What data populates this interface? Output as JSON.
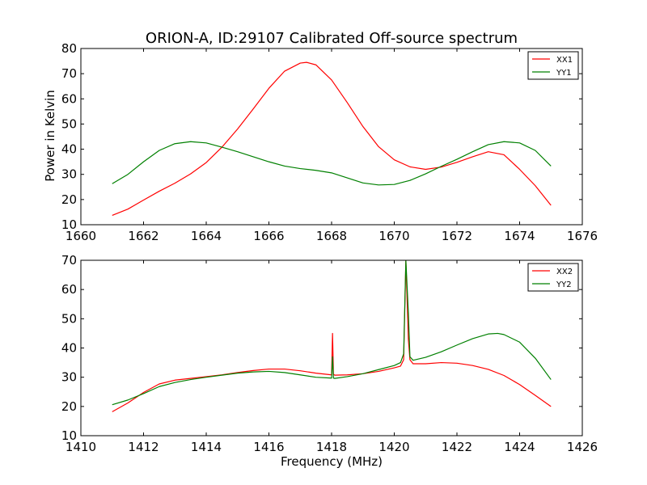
{
  "chart_data": [
    {
      "type": "line",
      "title": "ORION-A, ID:29107 Calibrated Off-source spectrum",
      "xlabel": "",
      "ylabel": "Power in Kelvin",
      "xlim": [
        1660,
        1676
      ],
      "ylim": [
        10,
        80
      ],
      "xticks": [
        "1660",
        "1662",
        "1664",
        "1666",
        "1668",
        "1670",
        "1672",
        "1674",
        "1676"
      ],
      "yticks": [
        "10",
        "20",
        "30",
        "40",
        "50",
        "60",
        "70",
        "80"
      ],
      "legend_position": "top-right",
      "grid": false,
      "series": [
        {
          "name": "XX1",
          "color": "#ff0000",
          "x": [
            1661.0,
            1661.5,
            1662.0,
            1662.5,
            1663.0,
            1663.5,
            1664.0,
            1664.5,
            1665.0,
            1665.5,
            1666.0,
            1666.5,
            1667.0,
            1667.2,
            1667.5,
            1668.0,
            1668.5,
            1669.0,
            1669.5,
            1670.0,
            1670.5,
            1671.0,
            1671.5,
            1672.0,
            1672.5,
            1673.0,
            1673.5,
            1674.0,
            1674.5,
            1675.0
          ],
          "y": [
            13.7,
            16.2,
            19.8,
            23.3,
            26.5,
            30.2,
            34.7,
            40.8,
            48.0,
            56.0,
            64.2,
            71.0,
            74.2,
            74.5,
            73.5,
            67.5,
            58.5,
            49.0,
            41.0,
            35.8,
            33.0,
            32.0,
            32.9,
            34.8,
            37.0,
            39.0,
            37.8,
            32.0,
            25.5,
            17.7
          ]
        },
        {
          "name": "YY1",
          "color": "#008000",
          "x": [
            1661.0,
            1661.5,
            1662.0,
            1662.5,
            1663.0,
            1663.5,
            1664.0,
            1664.5,
            1665.0,
            1665.5,
            1666.0,
            1666.5,
            1667.0,
            1667.5,
            1668.0,
            1668.5,
            1669.0,
            1669.5,
            1670.0,
            1670.5,
            1671.0,
            1671.5,
            1672.0,
            1672.5,
            1673.0,
            1673.5,
            1674.0,
            1674.5,
            1675.0
          ],
          "y": [
            26.3,
            30.0,
            35.0,
            39.5,
            42.2,
            43.0,
            42.5,
            40.8,
            39.0,
            37.0,
            35.0,
            33.3,
            32.3,
            31.6,
            30.6,
            28.6,
            26.6,
            25.8,
            26.0,
            27.6,
            30.2,
            33.2,
            36.0,
            39.0,
            41.8,
            43.0,
            42.5,
            39.5,
            33.3
          ]
        }
      ]
    },
    {
      "type": "line",
      "title": "",
      "xlabel": "Frequency (MHz)",
      "ylabel": "",
      "xlim": [
        1410,
        1426
      ],
      "ylim": [
        10,
        70
      ],
      "xticks": [
        "1410",
        "1412",
        "1414",
        "1416",
        "1418",
        "1420",
        "1422",
        "1424",
        "1426"
      ],
      "yticks": [
        "10",
        "20",
        "30",
        "40",
        "50",
        "60",
        "70"
      ],
      "legend_position": "top-right",
      "grid": false,
      "series": [
        {
          "name": "XX2",
          "color": "#ff0000",
          "x": [
            1411.0,
            1411.5,
            1412.0,
            1412.5,
            1413.0,
            1413.5,
            1414.0,
            1414.5,
            1415.0,
            1415.5,
            1416.0,
            1416.5,
            1417.0,
            1417.5,
            1418.0,
            1418.03,
            1418.06,
            1418.1,
            1418.5,
            1419.0,
            1419.5,
            1420.0,
            1420.2,
            1420.3,
            1420.37,
            1420.45,
            1420.5,
            1420.6,
            1421.0,
            1421.5,
            1422.0,
            1422.5,
            1423.0,
            1423.5,
            1424.0,
            1424.5,
            1425.0
          ],
          "y": [
            18.2,
            21.2,
            24.8,
            27.7,
            29.0,
            29.6,
            30.2,
            30.8,
            31.6,
            32.3,
            32.8,
            32.8,
            32.2,
            31.4,
            30.8,
            45.0,
            31.0,
            30.7,
            30.8,
            31.2,
            32.0,
            33.2,
            33.8,
            36.0,
            70.0,
            43.0,
            36.0,
            34.6,
            34.6,
            35.0,
            34.8,
            34.0,
            32.7,
            30.6,
            27.5,
            23.8,
            20.0
          ]
        },
        {
          "name": "YY2",
          "color": "#008000",
          "x": [
            1411.0,
            1411.5,
            1412.0,
            1412.5,
            1413.0,
            1413.5,
            1414.0,
            1414.5,
            1415.0,
            1415.5,
            1416.0,
            1416.5,
            1417.0,
            1417.5,
            1418.0,
            1418.03,
            1418.06,
            1418.1,
            1418.5,
            1419.0,
            1419.5,
            1420.0,
            1420.2,
            1420.3,
            1420.37,
            1420.45,
            1420.5,
            1420.6,
            1421.0,
            1421.5,
            1422.0,
            1422.5,
            1423.0,
            1423.3,
            1423.5,
            1424.0,
            1424.5,
            1425.0
          ],
          "y": [
            20.6,
            22.2,
            24.4,
            26.8,
            28.2,
            29.2,
            30.0,
            30.7,
            31.4,
            31.8,
            32.0,
            31.6,
            30.8,
            30.0,
            29.7,
            37.0,
            29.7,
            29.6,
            30.2,
            31.2,
            32.6,
            34.0,
            35.0,
            38.0,
            70.0,
            52.0,
            37.0,
            35.8,
            36.8,
            38.7,
            41.0,
            43.2,
            44.8,
            45.0,
            44.6,
            42.0,
            36.5,
            29.2
          ]
        }
      ]
    }
  ]
}
